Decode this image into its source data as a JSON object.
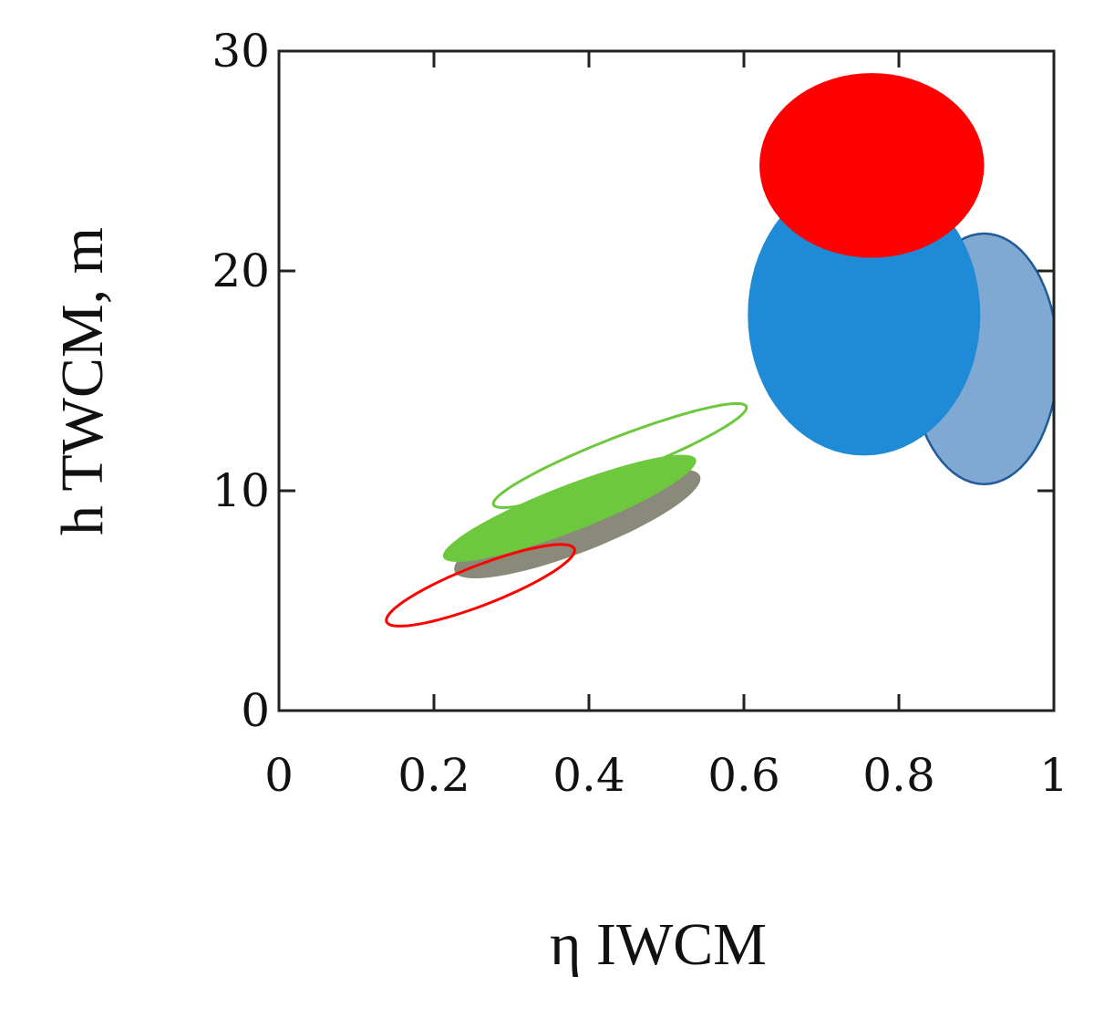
{
  "chart_data": {
    "type": "scatter",
    "title": "",
    "xlabel": "η IWCM",
    "ylabel": "h TWCM, m",
    "xlim": [
      0,
      1
    ],
    "ylim": [
      0,
      30
    ],
    "x_ticks": [
      "0",
      "0.2",
      "0.4",
      "0.6",
      "0.8",
      "1"
    ],
    "y_ticks": [
      "0",
      "10",
      "20",
      "30"
    ],
    "x_tick_values": [
      0,
      0.2,
      0.4,
      0.6,
      0.8,
      1
    ],
    "y_tick_values": [
      0,
      10,
      20,
      30
    ],
    "grid": false,
    "legend": "none",
    "series": [
      {
        "kind": "filled-ellipse",
        "cx": 0.91,
        "cy": 16.0,
        "rx": 0.095,
        "ry": 5.7,
        "angle": 0,
        "fill": "#7fa9d3",
        "stroke": "#1f5b99"
      },
      {
        "kind": "filled-ellipse",
        "cx": 0.755,
        "cy": 18.0,
        "rx": 0.15,
        "ry": 6.4,
        "angle": 0,
        "fill": "#1f8ad6",
        "stroke": "none"
      },
      {
        "kind": "filled-ellipse",
        "cx": 0.765,
        "cy": 24.8,
        "rx": 0.145,
        "ry": 4.2,
        "angle": 0,
        "fill": "#ff0000",
        "stroke": "none"
      },
      {
        "kind": "filled-ellipse",
        "cx": 0.385,
        "cy": 8.5,
        "rx": 0.17,
        "ry": 1.3,
        "angle": 0.37,
        "fill": "#8a8a7a",
        "stroke": "none"
      },
      {
        "kind": "filled-ellipse",
        "cx": 0.375,
        "cy": 9.2,
        "rx": 0.175,
        "ry": 1.05,
        "angle": 0.37,
        "fill": "#6dc83e",
        "stroke": "none"
      },
      {
        "kind": "outline-ellipse",
        "cx": 0.44,
        "cy": 11.6,
        "rx": 0.175,
        "ry": 0.85,
        "angle": 0.37,
        "fill": "none",
        "stroke": "#6dc83e"
      },
      {
        "kind": "outline-ellipse",
        "cx": 0.26,
        "cy": 5.7,
        "rx": 0.13,
        "ry": 0.9,
        "angle": 0.37,
        "fill": "none",
        "stroke": "#ff0000"
      }
    ]
  }
}
